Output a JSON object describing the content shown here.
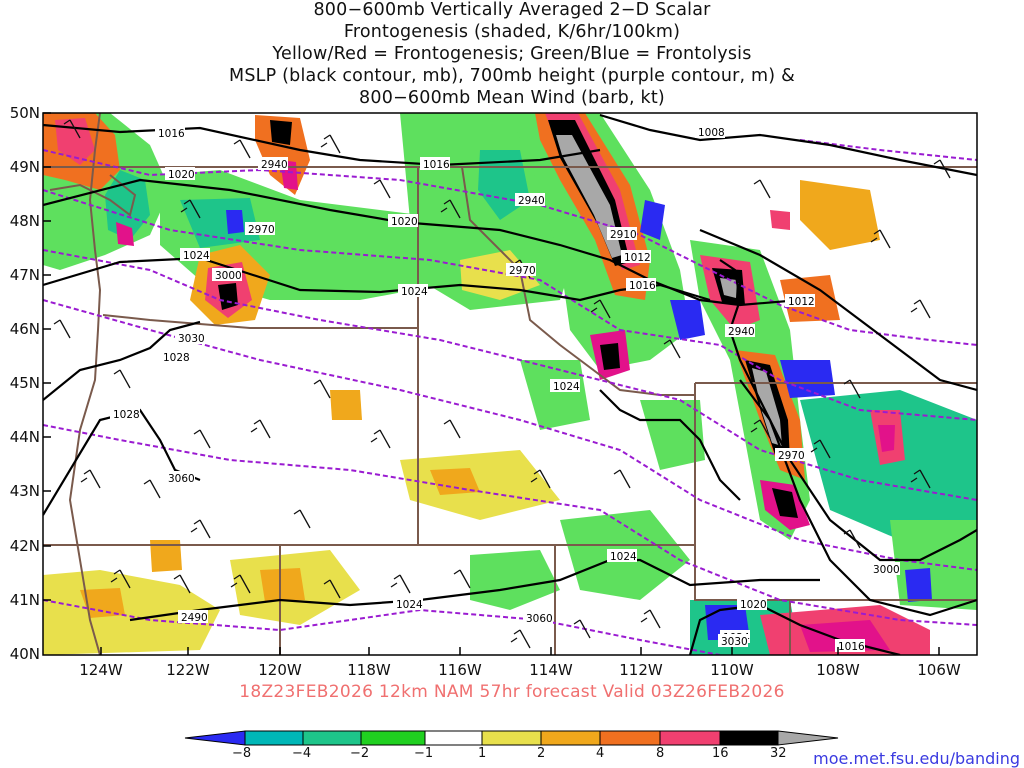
{
  "title": {
    "lines": [
      "800−600mb Vertically Averaged 2−D Scalar",
      "Frontogenesis (shaded, K/6hr/100km)",
      "Yellow/Red = Frontogenesis;  Green/Blue = Frontolysis",
      "MSLP (black contour, mb), 700mb height (purple contour, m) &",
      "800−600mb Mean Wind (barb, kt)"
    ]
  },
  "map": {
    "lat_labels": [
      "50N",
      "49N",
      "48N",
      "47N",
      "46N",
      "45N",
      "44N",
      "43N",
      "42N",
      "41N",
      "40N"
    ],
    "lon_labels": [
      "124W",
      "122W",
      "120W",
      "118W",
      "116W",
      "114W",
      "112W",
      "110W",
      "108W",
      "106W"
    ],
    "mslp_labels": [
      "1016",
      "1020",
      "1024",
      "1028",
      "1028",
      "1024",
      "1020",
      "1016",
      "1008",
      "1012",
      "1016",
      "1012",
      "1024",
      "1024",
      "1020",
      "1016",
      "1024",
      "1024"
    ],
    "height_labels": [
      "2940",
      "2970",
      "3000",
      "3030",
      "3060",
      "2940",
      "2970",
      "2910",
      "2940",
      "2970",
      "3000",
      "3060",
      "3030",
      "2490"
    ],
    "colors": {
      "mslp": "#000000",
      "height": "#9a1bd1",
      "border": "#7a5a4c",
      "frontolysis": [
        "#1f2fd0",
        "#00b0b0",
        "#18c080",
        "#30d030",
        "#5ee05e"
      ],
      "frontogenesis": [
        "#e8e04c",
        "#f0a81c",
        "#f07020",
        "#f04070",
        "#e2128a",
        "#000000",
        "#a8a8a8"
      ]
    }
  },
  "valid_time": "18Z23FEB2026 12km NAM 57hr forecast Valid 03Z26FEB2026",
  "colorbar": {
    "labels": [
      "−8",
      "−4",
      "−2",
      "−1",
      "1",
      "2",
      "4",
      "8",
      "16",
      "32"
    ],
    "colors": [
      "#2a2af2",
      "#00b7b7",
      "#1ec58a",
      "#20d020",
      "#ffffff",
      "#e8e04c",
      "#f0a81c",
      "#f07020",
      "#f04070",
      "#e2128a",
      "#000000",
      "#a8a8a8"
    ]
  },
  "credit": "moe.met.fsu.edu/banding"
}
